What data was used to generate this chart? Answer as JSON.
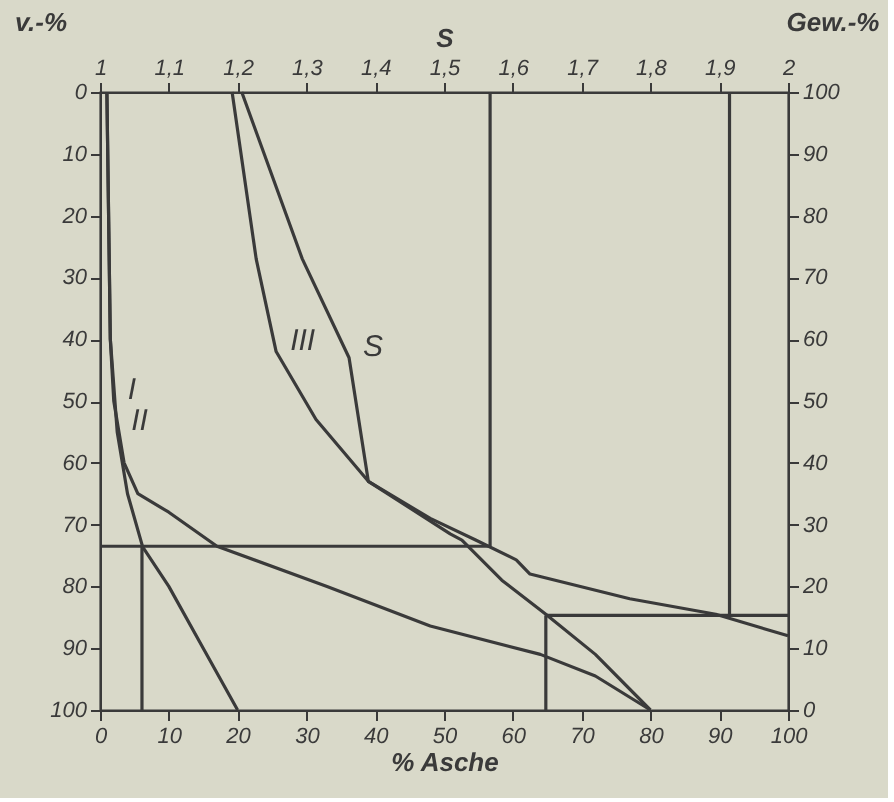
{
  "chart_data": {
    "type": "line",
    "xlabel": "% Asche",
    "ylabel": "v.-%",
    "y2label": "Gew.-%",
    "x2label": "S",
    "xlim": [
      0,
      100
    ],
    "xticks": [
      0,
      10,
      20,
      30,
      40,
      50,
      60,
      70,
      80,
      90,
      100
    ],
    "ylim": [
      100,
      0
    ],
    "yticks": [
      0,
      10,
      20,
      30,
      40,
      50,
      60,
      70,
      80,
      90,
      100
    ],
    "y2lim": [
      0,
      100
    ],
    "y2ticks": [
      0,
      10,
      20,
      30,
      40,
      50,
      60,
      70,
      80,
      90,
      100
    ],
    "x2lim": [
      1,
      2
    ],
    "x2ticks": [
      1,
      {
        "value": 1.1,
        "label": "1,1"
      },
      {
        "value": 1.2,
        "label": "1,2"
      },
      {
        "value": 1.3,
        "label": "1,3"
      },
      {
        "value": 1.4,
        "label": "1,4"
      },
      {
        "value": 1.5,
        "label": "1,5"
      },
      {
        "value": 1.6,
        "label": "1,6"
      },
      {
        "value": 1.7,
        "label": "1,7"
      },
      {
        "value": 1.8,
        "label": "1,8"
      },
      {
        "value": 1.9,
        "label": "1,9"
      },
      2
    ],
    "grid": false,
    "marker": "none",
    "line_style": "solid",
    "series": [
      {
        "name": "I",
        "color": "#3a3a3a",
        "x": [
          1,
          1.5,
          2,
          3.5,
          5.5,
          10,
          17,
          33,
          48,
          64,
          72,
          80
        ],
        "values": [
          0,
          40,
          50,
          60,
          65,
          68,
          73.5,
          80,
          86.4,
          91,
          94.5,
          100
        ]
      },
      {
        "name": "II",
        "color": "#3a3a3a",
        "x": [
          1,
          1.5,
          2.5,
          4,
          6.2,
          10,
          15,
          20
        ],
        "values": [
          0,
          40,
          55,
          65,
          73.6,
          80,
          90,
          100
        ]
      },
      {
        "name": "III",
        "color": "#3a3a3a",
        "x": [
          19.2,
          22.7,
          25.6,
          31.4,
          39,
          48,
          54.6,
          60.5,
          62.5,
          77,
          89.5,
          100
        ],
        "values": [
          0,
          27,
          42,
          53,
          63,
          69,
          72.5,
          75.7,
          78,
          82,
          84.5,
          88
        ]
      },
      {
        "name": "S",
        "color": "#3a3a3a",
        "x": [
          20.6,
          29.4,
          36.2,
          39,
          50.9,
          52.6,
          58.4,
          64.8,
          72,
          80
        ],
        "values": [
          0,
          27,
          43,
          63,
          71.5,
          72.5,
          79,
          84.5,
          91,
          100
        ]
      },
      {
        "color": "#3a3a3a",
        "x": [
          0,
          56.7
        ],
        "values": [
          73.5,
          73.5
        ]
      },
      {
        "color": "#3a3a3a",
        "x": [
          6.1,
          6.1
        ],
        "values": [
          73.5,
          100
        ]
      },
      {
        "color": "#3a3a3a",
        "x": [
          56.7,
          56.7
        ],
        "values": [
          0,
          73.5
        ]
      },
      {
        "color": "#3a3a3a",
        "x": [
          64.8,
          100
        ],
        "values": [
          84.7,
          84.7
        ]
      },
      {
        "color": "#3a3a3a",
        "x": [
          64.8,
          64.8
        ],
        "values": [
          84.7,
          100
        ]
      },
      {
        "color": "#3a3a3a",
        "x": [
          91.5,
          91.5
        ],
        "values": [
          0,
          84.7
        ]
      }
    ]
  }
}
